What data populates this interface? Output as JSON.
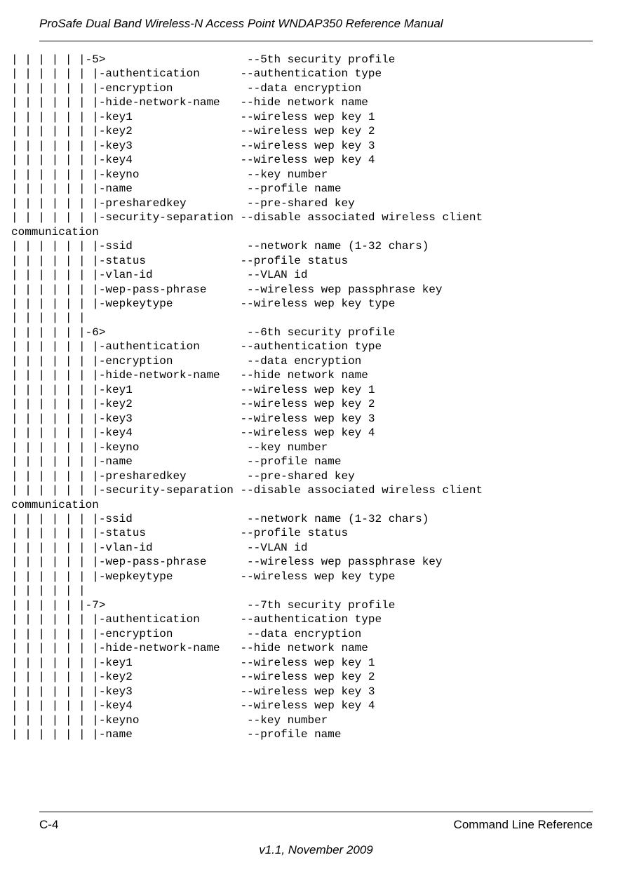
{
  "header": {
    "title": "ProSafe Dual Band Wireless-N Access Point WNDAP350 Reference Manual"
  },
  "footer": {
    "page_num": "C-4",
    "section": "Command Line Reference",
    "version": "v1.1, November 2009"
  },
  "cli_tree": "| | | | | |-5>                     --5th security profile\n| | | | | | |-authentication      --authentication type\n| | | | | | |-encryption           --data encryption\n| | | | | | |-hide-network-name   --hide network name\n| | | | | | |-key1                --wireless wep key 1\n| | | | | | |-key2                --wireless wep key 2\n| | | | | | |-key3                --wireless wep key 3\n| | | | | | |-key4                --wireless wep key 4\n| | | | | | |-keyno                --key number\n| | | | | | |-name                 --profile name\n| | | | | | |-presharedkey         --pre-shared key\n| | | | | | |-security-separation --disable associated wireless client\ncommunication\n| | | | | | |-ssid                 --network name (1-32 chars)\n| | | | | | |-status              --profile status\n| | | | | | |-vlan-id              --VLAN id\n| | | | | | |-wep-pass-phrase      --wireless wep passphrase key\n| | | | | | |-wepkeytype          --wireless wep key type\n| | | | | |\n| | | | | |-6>                     --6th security profile\n| | | | | | |-authentication      --authentication type\n| | | | | | |-encryption           --data encryption\n| | | | | | |-hide-network-name   --hide network name\n| | | | | | |-key1                --wireless wep key 1\n| | | | | | |-key2                --wireless wep key 2\n| | | | | | |-key3                --wireless wep key 3\n| | | | | | |-key4                --wireless wep key 4\n| | | | | | |-keyno                --key number\n| | | | | | |-name                 --profile name\n| | | | | | |-presharedkey         --pre-shared key\n| | | | | | |-security-separation --disable associated wireless client\ncommunication\n| | | | | | |-ssid                 --network name (1-32 chars)\n| | | | | | |-status              --profile status\n| | | | | | |-vlan-id              --VLAN id\n| | | | | | |-wep-pass-phrase      --wireless wep passphrase key\n| | | | | | |-wepkeytype          --wireless wep key type\n| | | | | |\n| | | | | |-7>                     --7th security profile\n| | | | | | |-authentication      --authentication type\n| | | | | | |-encryption           --data encryption\n| | | | | | |-hide-network-name   --hide network name\n| | | | | | |-key1                --wireless wep key 1\n| | | | | | |-key2                --wireless wep key 2\n| | | | | | |-key3                --wireless wep key 3\n| | | | | | |-key4                --wireless wep key 4\n| | | | | | |-keyno                --key number\n| | | | | | |-name                 --profile name"
}
